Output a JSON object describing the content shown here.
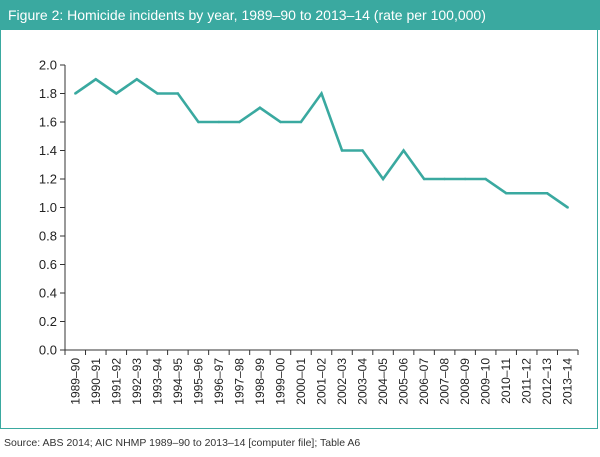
{
  "title": "Figure 2: Homicide incidents by year, 1989–90 to 2013–14 (rate per 100,000)",
  "source": "Source: ABS 2014; AIC NHMP 1989–90 to 2013–14 [computer file]; Table A6",
  "colors": {
    "accent": "#3aa9a0",
    "line": "#3aa9a0",
    "axis": "#333333"
  },
  "chart_data": {
    "type": "line",
    "title": "Figure 2: Homicide incidents by year, 1989–90 to 2013–14 (rate per 100,000)",
    "xlabel": "",
    "ylabel": "",
    "ylim": [
      0,
      2.0
    ],
    "yticks": [
      "0.0",
      "0.2",
      "0.4",
      "0.6",
      "0.8",
      "1.0",
      "1.2",
      "1.4",
      "1.6",
      "1.8",
      "2.0"
    ],
    "grid": false,
    "categories": [
      "1989–90",
      "1990–91",
      "1991–92",
      "1992–93",
      "1993–94",
      "1994–95",
      "1995–96",
      "1996–97",
      "1997–98",
      "1998–99",
      "1999–00",
      "2000–01",
      "2001–02",
      "2002–03",
      "2003–04",
      "2004–05",
      "2005–06",
      "2006–07",
      "2007–08",
      "2008–09",
      "2009–10",
      "2010–11",
      "2011–12",
      "2012–13",
      "2013–14"
    ],
    "series": [
      {
        "values": [
          1.8,
          1.9,
          1.8,
          1.9,
          1.8,
          1.8,
          1.6,
          1.6,
          1.6,
          1.7,
          1.6,
          1.6,
          1.8,
          1.4,
          1.4,
          1.2,
          1.4,
          1.2,
          1.2,
          1.2,
          1.2,
          1.1,
          1.1,
          1.1,
          1.0
        ]
      }
    ]
  }
}
